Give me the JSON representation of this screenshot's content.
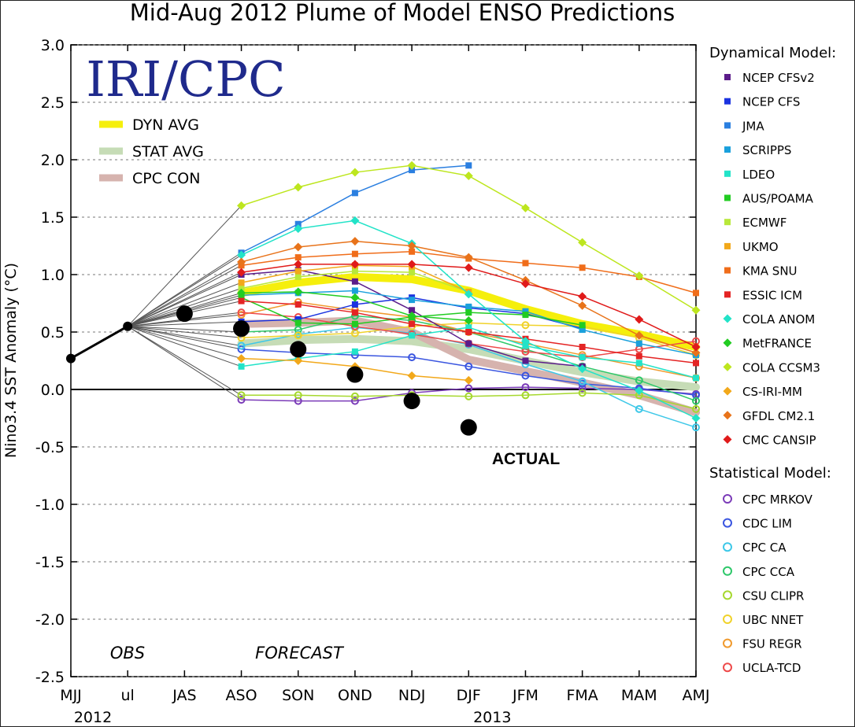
{
  "chart_data": {
    "type": "line",
    "title": "Mid-Aug 2012 Plume of Model ENSO Predictions",
    "ylabel": "Nino3.4 SST Anomaly (°C)",
    "ylim": [
      -2.5,
      3.0
    ],
    "yticks": [
      "3.0",
      "2.5",
      "2.0",
      "1.5",
      "1.0",
      "0.5",
      "0.0",
      "-0.5",
      "-1.0",
      "-1.5",
      "-2.0",
      "-2.5"
    ],
    "categories": [
      "MJJ",
      "ul",
      "JAS",
      "ASO",
      "SON",
      "OND",
      "NDJ",
      "DJF",
      "JFM",
      "FMA",
      "MAM",
      "AMJ"
    ],
    "year_labels": [
      "2012",
      "2013"
    ],
    "logo_text": "IRI/CPC",
    "obs_label": "OBS",
    "forecast_label": "FORECAST",
    "actual_label": "ACTUAL",
    "observed": [
      0.27,
      0.55
    ],
    "actual": [
      {
        "x": "JAS",
        "y": 0.66
      },
      {
        "x": "ASO",
        "y": 0.53
      },
      {
        "x": "SON",
        "y": 0.35
      },
      {
        "x": "OND",
        "y": 0.13
      },
      {
        "x": "NDJ",
        "y": -0.1
      },
      {
        "x": "DJF",
        "y": -0.33
      }
    ],
    "inset_legend": [
      {
        "name": "DYN AVG",
        "color": "#f5ef0c"
      },
      {
        "name": "STAT AVG",
        "color": "#c6dcb6"
      },
      {
        "name": "CPC CON",
        "color": "#d6b3ae"
      }
    ],
    "averages": [
      {
        "name": "DYN AVG",
        "color": "#f5ef0c",
        "values": [
          0.84,
          0.93,
          0.98,
          0.96,
          0.86,
          0.7,
          0.57,
          0.48,
          0.37
        ]
      },
      {
        "name": "STAT AVG",
        "color": "#c6dcb6",
        "values": [
          0.4,
          0.43,
          0.44,
          0.42,
          0.35,
          0.25,
          0.15,
          0.07,
          0.02
        ]
      },
      {
        "name": "CPC CON",
        "color": "#d6b3ae",
        "values": [
          0.57,
          0.58,
          0.6,
          0.5,
          0.26,
          0.16,
          0.06,
          -0.05,
          -0.2
        ]
      }
    ],
    "dynamical_header": "Dynamical Model:",
    "statistical_header": "Statistical Model:",
    "dynamical_series": [
      {
        "name": "NCEP CFSv2",
        "color": "#5b1c8a",
        "marker": "square",
        "values": [
          1.0,
          1.04,
          0.94,
          0.69,
          0.4,
          0.25,
          0.2
        ]
      },
      {
        "name": "NCEP CFS",
        "color": "#1b33e0",
        "marker": "square",
        "values": [
          0.59,
          0.61,
          0.74,
          0.8,
          0.71,
          0.66,
          0.53
        ]
      },
      {
        "name": "JMA",
        "color": "#2b7fe0",
        "marker": "square",
        "values": [
          1.19,
          1.44,
          1.71,
          1.91,
          1.95
        ]
      },
      {
        "name": "SCRIPPS",
        "color": "#1aa0dc",
        "marker": "square",
        "values": [
          0.82,
          0.84,
          0.86,
          0.78,
          0.72,
          0.68,
          0.52,
          0.4,
          0.3
        ]
      },
      {
        "name": "LDEO",
        "color": "#22e3c8",
        "marker": "square",
        "values": [
          0.2,
          0.27,
          0.33,
          0.47,
          0.54,
          0.38,
          0.28,
          0.23,
          0.1
        ]
      },
      {
        "name": "AUS/POAMA",
        "color": "#22cc22",
        "marker": "square",
        "values": [
          0.8,
          0.58,
          0.57,
          0.63,
          0.67,
          0.65,
          0.56
        ]
      },
      {
        "name": "ECMWF",
        "color": "#b8e83a",
        "marker": "square",
        "values": [
          0.88,
          0.98,
          1.03,
          1.02,
          0.85
        ]
      },
      {
        "name": "UKMO",
        "color": "#f2a81a",
        "marker": "square",
        "values": [
          0.93,
          1.03,
          1.08,
          1.07,
          0.85
        ]
      },
      {
        "name": "KMA SNU",
        "color": "#f06d1a",
        "marker": "square",
        "values": [
          1.08,
          1.15,
          1.18,
          1.2,
          1.14,
          1.1,
          1.06,
          0.98,
          0.84
        ]
      },
      {
        "name": "ESSIC ICM",
        "color": "#e42424",
        "marker": "square",
        "values": [
          0.77,
          0.74,
          0.67,
          0.57,
          0.5,
          0.44,
          0.37,
          0.29,
          0.23
        ]
      },
      {
        "name": "COLA ANOM",
        "color": "#22e3c8",
        "marker": "diamond",
        "values": [
          1.17,
          1.4,
          1.47,
          1.27,
          0.83,
          0.42,
          0.18,
          -0.01,
          -0.25
        ]
      },
      {
        "name": "MetFRANCE",
        "color": "#22cc22",
        "marker": "diamond",
        "values": [
          0.84,
          0.85,
          0.8,
          0.64,
          0.6
        ]
      },
      {
        "name": "COLA CCSM3",
        "color": "#bde61e",
        "marker": "diamond",
        "values": [
          1.6,
          1.76,
          1.89,
          1.95,
          1.86,
          1.58,
          1.28,
          0.99,
          0.69
        ]
      },
      {
        "name": "CS-IRI-MM",
        "color": "#f2a81a",
        "marker": "diamond",
        "values": [
          0.27,
          0.25,
          0.2,
          0.12,
          0.08
        ]
      },
      {
        "name": "GFDL CM2.1",
        "color": "#e8731a",
        "marker": "diamond",
        "values": [
          1.11,
          1.24,
          1.29,
          1.25,
          1.15,
          0.95,
          0.73,
          0.47,
          0.32
        ]
      },
      {
        "name": "CMC CANSIP",
        "color": "#e01a1a",
        "marker": "diamond",
        "values": [
          1.02,
          1.09,
          1.09,
          1.09,
          1.06,
          0.92,
          0.81,
          0.61,
          0.37
        ]
      }
    ],
    "statistical_series": [
      {
        "name": "CPC MRKOV",
        "color": "#7b3bb8",
        "marker": "circle",
        "values": [
          -0.09,
          -0.1,
          -0.1,
          -0.03,
          0.01,
          0.02,
          0.01,
          0.0,
          -0.04
        ]
      },
      {
        "name": "CDC LIM",
        "color": "#3b56e0",
        "marker": "circle",
        "values": [
          0.35,
          0.32,
          0.3,
          0.28,
          0.2,
          0.12,
          0.05,
          0.01,
          -0.05
        ]
      },
      {
        "name": "CPC CA",
        "color": "#3ec8e8",
        "marker": "circle",
        "values": [
          0.38,
          0.48,
          0.54,
          0.49,
          0.39,
          0.22,
          0.07,
          -0.17,
          -0.33
        ]
      },
      {
        "name": "CPC CCA",
        "color": "#2ec86a",
        "marker": "circle",
        "values": [
          0.5,
          0.52,
          0.64,
          0.6,
          0.5,
          0.35,
          0.2,
          0.08,
          -0.1
        ]
      },
      {
        "name": "CSU CLIPR",
        "color": "#a6d82e",
        "marker": "circle",
        "values": [
          -0.05,
          -0.05,
          -0.06,
          -0.05,
          -0.06,
          -0.05,
          -0.03,
          -0.05,
          -0.17
        ]
      },
      {
        "name": "UBC NNET",
        "color": "#f0d22a",
        "marker": "circle",
        "values": [
          0.45,
          0.47,
          0.49,
          0.55,
          0.58,
          0.56,
          0.55,
          0.45,
          0.3
        ]
      },
      {
        "name": "FSU REGR",
        "color": "#f09a2e",
        "marker": "circle",
        "values": [
          0.65,
          0.76,
          0.69,
          0.63,
          0.5,
          0.4,
          0.3,
          0.2,
          0.1
        ]
      },
      {
        "name": "UCLA-TCD",
        "color": "#ee4a4a",
        "marker": "circle",
        "values": [
          0.67,
          0.63,
          0.55,
          0.48,
          0.4,
          0.33,
          0.28,
          0.35,
          0.42
        ]
      }
    ]
  }
}
